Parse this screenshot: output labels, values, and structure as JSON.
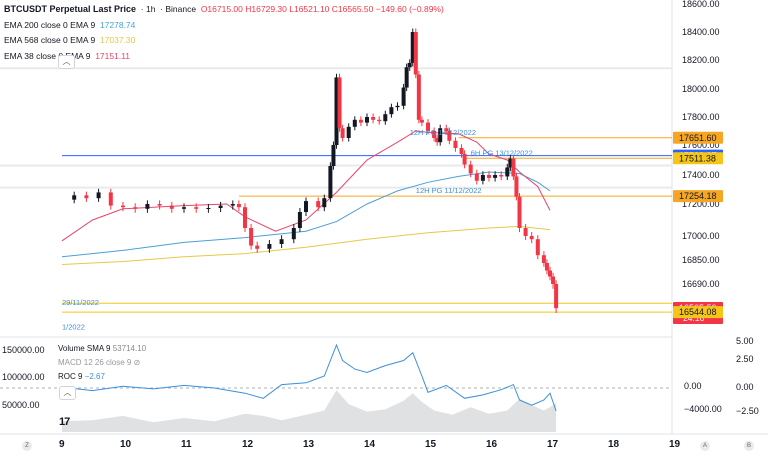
{
  "header": {
    "symbol": "BTCUSDT Perpetual Last Price",
    "interval": "1h",
    "exchange": "Binance",
    "ohlc": {
      "o": "O16715.00",
      "h": "H16729.30",
      "l": "L16521.10",
      "c": "C16565.50",
      "chg": "−149.60 (−0.89%)"
    }
  },
  "indicators": [
    {
      "label": "EMA 200 close 0 EMA 9",
      "value": "17278.74",
      "color": "#4a9fd9"
    },
    {
      "label": "EMA 568 close 0 EMA 9",
      "value": "17037.30",
      "color": "#e6c84a"
    },
    {
      "label": "EMA 38 close 0 EMA 9",
      "value": "17151.11",
      "color": "#e9456a"
    }
  ],
  "lower": {
    "volume": {
      "label": "Volume SMA 9",
      "value": "53714.10"
    },
    "macd": {
      "label": "MACD 12 26 close 9"
    },
    "roc": {
      "label": "ROC 9",
      "value": "−2.67",
      "color": "#3c8fd9"
    }
  },
  "colors": {
    "up": "#26a69a",
    "down": "#f23645",
    "ema200": "#4a9fd9",
    "ema568": "#e6c84a",
    "ema38": "#e9456a",
    "hline_orange": "#f5a623",
    "hline_blue": "#2962ff"
  },
  "chart_data": {
    "type": "candlestick",
    "x_ticks": [
      "9",
      "10",
      "11",
      "12",
      "13",
      "14",
      "15",
      "16",
      "17",
      "18",
      "19"
    ],
    "x_range": [
      9,
      19
    ],
    "ylim": [
      16400,
      18600
    ],
    "y_ticks": [
      "18600.00",
      "18400.00",
      "18200.00",
      "18000.00",
      "17800.00",
      "17600.00",
      "17400.00",
      "17200.00",
      "17000.00",
      "16850.00",
      "16690.00"
    ],
    "price_labels": [
      {
        "text": "17651.60",
        "bg": "#f5a623",
        "fg": "#131722",
        "value": 17651.6
      },
      {
        "text": "17529.07",
        "bg": "#2962ff",
        "fg": "#ffffff",
        "value": 17529.07
      },
      {
        "text": "17511.38",
        "bg": "#f5c518",
        "fg": "#131722",
        "value": 17511.38
      },
      {
        "text": "17254.18",
        "bg": "#f5a623",
        "fg": "#131722",
        "value": 17254.18
      },
      {
        "text": "16565.50",
        "bg": "#f23645",
        "fg": "#ffffff",
        "value": 16565.5,
        "sub": "24:16"
      },
      {
        "text": "16544.08",
        "bg": "#f5c518",
        "fg": "#131722",
        "value": 16544.08
      }
    ],
    "annotations": [
      {
        "text": "12H PG 14/12/2022",
        "x": 14.7,
        "y": 17651.6
      },
      {
        "text": "6H PG 13/12/2022",
        "x": 15.7,
        "y": 17511.38
      },
      {
        "text": "12H PG 11/12/2022",
        "x": 14.8,
        "y": 17254.18
      },
      {
        "text": "29/11/2022",
        "x": 9.0,
        "y": 16565.5
      },
      {
        "text": "1/2022",
        "x": 9.0,
        "y": 16440
      }
    ],
    "hlines": [
      {
        "y": 17651.6,
        "color": "#f5a623",
        "x0": 15.5
      },
      {
        "y": 17529.07,
        "color": "#2962ff",
        "x0": 9
      },
      {
        "y": 17511.38,
        "color": "#f5a623",
        "x0": 15.6
      },
      {
        "y": 17254.18,
        "color": "#f5a623",
        "x0": 11.9
      },
      {
        "y": 16590,
        "color": "#f5c518",
        "x0": 9
      },
      {
        "y": 16544.08,
        "color": "#f5c518",
        "x0": 9
      }
    ],
    "zones": [
      {
        "y0": 18080,
        "y1": 18150
      },
      {
        "y0": 17380,
        "y1": 17470
      },
      {
        "y0": 17250,
        "y1": 17320
      }
    ],
    "price": [
      [
        9.0,
        17230
      ],
      [
        9.2,
        17260
      ],
      [
        9.4,
        17240
      ],
      [
        9.6,
        17280
      ],
      [
        9.8,
        17190
      ],
      [
        10.0,
        17180
      ],
      [
        10.2,
        17170
      ],
      [
        10.4,
        17200
      ],
      [
        10.6,
        17190
      ],
      [
        10.8,
        17170
      ],
      [
        11.0,
        17180
      ],
      [
        11.2,
        17170
      ],
      [
        11.4,
        17175
      ],
      [
        11.6,
        17190
      ],
      [
        11.8,
        17200
      ],
      [
        11.9,
        17180
      ],
      [
        12.0,
        17050
      ],
      [
        12.1,
        16940
      ],
      [
        12.2,
        16920
      ],
      [
        12.4,
        16950
      ],
      [
        12.6,
        16980
      ],
      [
        12.8,
        17050
      ],
      [
        12.9,
        17150
      ],
      [
        13.0,
        17220
      ],
      [
        13.2,
        17180
      ],
      [
        13.3,
        17240
      ],
      [
        13.4,
        17460
      ],
      [
        13.45,
        17600
      ],
      [
        13.5,
        18080
      ],
      [
        13.55,
        17720
      ],
      [
        13.6,
        17650
      ],
      [
        13.7,
        17730
      ],
      [
        13.8,
        17780
      ],
      [
        13.9,
        17760
      ],
      [
        14.0,
        17800
      ],
      [
        14.1,
        17780
      ],
      [
        14.2,
        17770
      ],
      [
        14.3,
        17820
      ],
      [
        14.4,
        17870
      ],
      [
        14.5,
        17880
      ],
      [
        14.6,
        18010
      ],
      [
        14.65,
        18150
      ],
      [
        14.7,
        18180
      ],
      [
        14.75,
        18400
      ],
      [
        14.8,
        18100
      ],
      [
        14.85,
        17780
      ],
      [
        14.9,
        17760
      ],
      [
        15.0,
        17700
      ],
      [
        15.1,
        17650
      ],
      [
        15.15,
        17620
      ],
      [
        15.2,
        17720
      ],
      [
        15.3,
        17700
      ],
      [
        15.35,
        17630
      ],
      [
        15.45,
        17580
      ],
      [
        15.55,
        17540
      ],
      [
        15.6,
        17470
      ],
      [
        15.7,
        17410
      ],
      [
        15.8,
        17360
      ],
      [
        15.9,
        17400
      ],
      [
        16.0,
        17380
      ],
      [
        16.1,
        17400
      ],
      [
        16.2,
        17390
      ],
      [
        16.3,
        17450
      ],
      [
        16.35,
        17510
      ],
      [
        16.4,
        17390
      ],
      [
        16.45,
        17250
      ],
      [
        16.5,
        17050
      ],
      [
        16.6,
        17000
      ],
      [
        16.7,
        16980
      ],
      [
        16.8,
        16880
      ],
      [
        16.9,
        16830
      ],
      [
        16.95,
        16780
      ],
      [
        17.0,
        16740
      ],
      [
        17.05,
        16690
      ],
      [
        17.1,
        16565
      ]
    ],
    "ema200": [
      [
        9.0,
        16870
      ],
      [
        10.0,
        16910
      ],
      [
        11.0,
        16960
      ],
      [
        12.0,
        16990
      ],
      [
        13.0,
        17030
      ],
      [
        13.5,
        17090
      ],
      [
        14.0,
        17200
      ],
      [
        14.5,
        17290
      ],
      [
        15.0,
        17350
      ],
      [
        15.5,
        17390
      ],
      [
        16.0,
        17420
      ],
      [
        16.5,
        17410
      ],
      [
        16.8,
        17350
      ],
      [
        17.0,
        17290
      ]
    ],
    "ema568": [
      [
        9.0,
        16820
      ],
      [
        10.0,
        16840
      ],
      [
        11.0,
        16870
      ],
      [
        12.0,
        16890
      ],
      [
        13.0,
        16930
      ],
      [
        14.0,
        16980
      ],
      [
        15.0,
        17020
      ],
      [
        16.0,
        17050
      ],
      [
        16.5,
        17060
      ],
      [
        17.0,
        17040
      ]
    ],
    "ema38": [
      [
        9.0,
        16970
      ],
      [
        9.5,
        17100
      ],
      [
        10.0,
        17170
      ],
      [
        11.0,
        17190
      ],
      [
        11.7,
        17200
      ],
      [
        12.0,
        17120
      ],
      [
        12.5,
        17030
      ],
      [
        13.0,
        17100
      ],
      [
        13.5,
        17280
      ],
      [
        14.0,
        17500
      ],
      [
        14.5,
        17620
      ],
      [
        14.8,
        17700
      ],
      [
        15.0,
        17690
      ],
      [
        15.5,
        17680
      ],
      [
        15.8,
        17620
      ],
      [
        16.0,
        17540
      ],
      [
        16.3,
        17500
      ],
      [
        16.5,
        17420
      ],
      [
        16.8,
        17320
      ],
      [
        17.0,
        17160
      ]
    ],
    "lower_axis_left": [
      "150000.00",
      "100000.00",
      "50000.00"
    ],
    "lower_axis_right": [
      "5.00",
      "2.50",
      "0.00",
      "−2.50"
    ],
    "lower_axis_right2": [
      "0.00",
      "−4000.00"
    ],
    "roc": [
      [
        9.0,
        0.1
      ],
      [
        9.5,
        -0.3
      ],
      [
        10.0,
        0.2
      ],
      [
        10.5,
        -0.1
      ],
      [
        11.0,
        0.3
      ],
      [
        11.5,
        0.0
      ],
      [
        12.0,
        -0.6
      ],
      [
        12.3,
        -1.2
      ],
      [
        12.6,
        0.4
      ],
      [
        13.0,
        0.6
      ],
      [
        13.3,
        1.4
      ],
      [
        13.5,
        5.0
      ],
      [
        13.6,
        3.2
      ],
      [
        13.8,
        2.2
      ],
      [
        14.0,
        1.8
      ],
      [
        14.3,
        2.6
      ],
      [
        14.6,
        3.2
      ],
      [
        14.75,
        4.1
      ],
      [
        14.9,
        1.4
      ],
      [
        15.0,
        -0.5
      ],
      [
        15.3,
        0.3
      ],
      [
        15.6,
        -1.2
      ],
      [
        15.9,
        -0.8
      ],
      [
        16.2,
        -0.2
      ],
      [
        16.4,
        0.4
      ],
      [
        16.5,
        -1.4
      ],
      [
        16.7,
        -2.0
      ],
      [
        16.9,
        -1.4
      ],
      [
        17.0,
        -0.6
      ],
      [
        17.1,
        -2.67
      ]
    ],
    "volume": [
      [
        9.0,
        20000
      ],
      [
        9.5,
        22000
      ],
      [
        10.0,
        30000
      ],
      [
        10.5,
        18000
      ],
      [
        11.0,
        26000
      ],
      [
        11.5,
        20000
      ],
      [
        12.0,
        34000
      ],
      [
        12.3,
        30000
      ],
      [
        12.6,
        22000
      ],
      [
        13.0,
        32000
      ],
      [
        13.3,
        40000
      ],
      [
        13.5,
        78000
      ],
      [
        13.7,
        52000
      ],
      [
        14.0,
        38000
      ],
      [
        14.3,
        42000
      ],
      [
        14.6,
        58000
      ],
      [
        14.75,
        72000
      ],
      [
        14.9,
        56000
      ],
      [
        15.1,
        40000
      ],
      [
        15.4,
        32000
      ],
      [
        15.7,
        46000
      ],
      [
        16.0,
        34000
      ],
      [
        16.3,
        40000
      ],
      [
        16.5,
        62000
      ],
      [
        16.7,
        50000
      ],
      [
        16.9,
        40000
      ],
      [
        17.0,
        46000
      ],
      [
        17.1,
        53714
      ]
    ]
  },
  "time_axis": {
    "left_icon": "Z",
    "right_icon_a": "A",
    "right_icon_b": "B"
  }
}
